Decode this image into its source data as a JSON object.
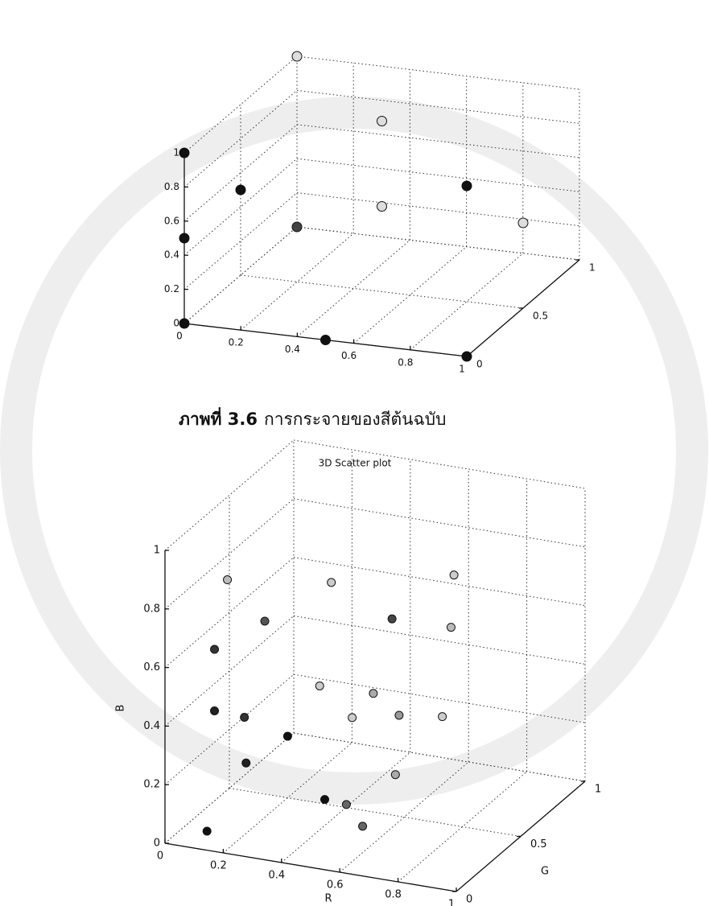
{
  "chart_data": [
    {
      "type": "scatter3d",
      "xlim": [
        0,
        1
      ],
      "ylim": [
        0,
        1
      ],
      "zlim": [
        0,
        1
      ],
      "xticks": [
        0,
        0.2,
        0.4,
        0.6,
        0.8,
        1
      ],
      "yticks": [
        0,
        0.5,
        1
      ],
      "zticks": [
        0,
        0.2,
        0.4,
        0.6,
        0.8,
        1
      ],
      "grid": true,
      "x": [
        0,
        0,
        0,
        0.5,
        1,
        0,
        1,
        0,
        0,
        0.5,
        0.5,
        1
      ],
      "y": [
        0,
        0,
        0,
        0,
        0,
        0.5,
        0,
        1,
        1,
        0.5,
        0.5,
        0.5
      ],
      "z": [
        0,
        0.5,
        1,
        0,
        0,
        0.5,
        1,
        0,
        1,
        1,
        0.5,
        0.5
      ],
      "colors": [
        "#111",
        "#111",
        "#111",
        "#111",
        "#111",
        "#111",
        "#111",
        "#444",
        "#ddd",
        "#ddd",
        "#ddd",
        "#ddd"
      ]
    },
    {
      "type": "scatter3d",
      "title": "3D Scatter plot",
      "xlabel": "R",
      "ylabel": "G",
      "zlabel": "B",
      "xlim": [
        0,
        1
      ],
      "ylim": [
        0,
        1
      ],
      "zlim": [
        0,
        1
      ],
      "xticks": [
        0,
        0.2,
        0.4,
        0.6,
        0.8,
        1
      ],
      "yticks": [
        0,
        0.5,
        1
      ],
      "zticks": [
        0,
        0.2,
        0.4,
        0.6,
        0.8,
        1
      ],
      "grid": true,
      "x": [
        0.1,
        0.17,
        0.17,
        0.17,
        0.21,
        0.14,
        0.2,
        0.46,
        0.31,
        0.35,
        0.47,
        0.45,
        0.45,
        0.51,
        0.49,
        0.51,
        0.54,
        0.55,
        0.57,
        0.59,
        0.19
      ],
      "y": [
        0.1,
        0,
        0,
        0.1,
        0.3,
        0.3,
        0.5,
        0.2,
        0.5,
        0.5,
        0.7,
        0.6,
        0.8,
        0.3,
        0.3,
        1,
        1,
        1,
        0.5,
        0.2,
        0.2
      ],
      "z": [
        0.02,
        0.48,
        0.69,
        0.89,
        0.68,
        0.34,
        0.21,
        0.15,
        0.4,
        0.76,
        0.58,
        0.36,
        0.21,
        0.4,
        0.1,
        0.14,
        0.45,
        0.63,
        0.14,
        0.08,
        0.23
      ],
      "colors": [
        "#111",
        "#222",
        "#333",
        "#bbb",
        "#555",
        "#333",
        "#111",
        "#111",
        "#ccc",
        "#ccc",
        "#444",
        "#aaa",
        "#999",
        "#ccc",
        "#666",
        "#ccc",
        "#bbb",
        "#ccc",
        "#aaa",
        "#666",
        "#222"
      ]
    }
  ],
  "caption": {
    "label": "ภาพที่ 3.6",
    "text": "การกระจายของสีต้นฉบับ"
  }
}
